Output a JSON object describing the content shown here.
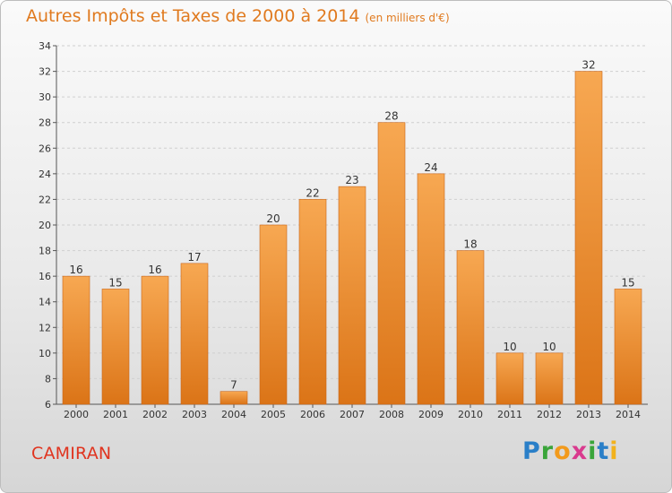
{
  "chart_title": "Autres Impôts et Taxes de 2000 à 2014",
  "chart_unit": "(en milliers d'€)",
  "city": "CAMIRAN",
  "logo": {
    "text": "Proxiti",
    "letters": [
      "P",
      "r",
      "o",
      "x",
      "i",
      "t",
      "i"
    ],
    "colors": [
      "#2a7fc8",
      "#3aa53a",
      "#f29a1c",
      "#d93a8e",
      "#3aa53a",
      "#2a7fc8",
      "#f2b21c"
    ]
  },
  "colors": {
    "bar_top": "#f7a852",
    "bar_bottom": "#db7417",
    "title": "#e07a1f",
    "city": "#e0341f"
  },
  "chart_data": {
    "type": "bar",
    "title": "Autres Impôts et Taxes de 2000 à 2014",
    "subtitle": "(en milliers d'€)",
    "categories": [
      "2000",
      "2001",
      "2002",
      "2003",
      "2004",
      "2005",
      "2006",
      "2007",
      "2008",
      "2009",
      "2010",
      "2011",
      "2012",
      "2013",
      "2014"
    ],
    "values": [
      16,
      15,
      16,
      17,
      7,
      20,
      22,
      23,
      28,
      24,
      18,
      10,
      10,
      32,
      15
    ],
    "ylim": [
      6,
      34
    ],
    "yticks": [
      6,
      8,
      10,
      12,
      14,
      16,
      18,
      20,
      22,
      24,
      26,
      28,
      30,
      32,
      34
    ],
    "grid": true,
    "xlabel": "",
    "ylabel": ""
  }
}
